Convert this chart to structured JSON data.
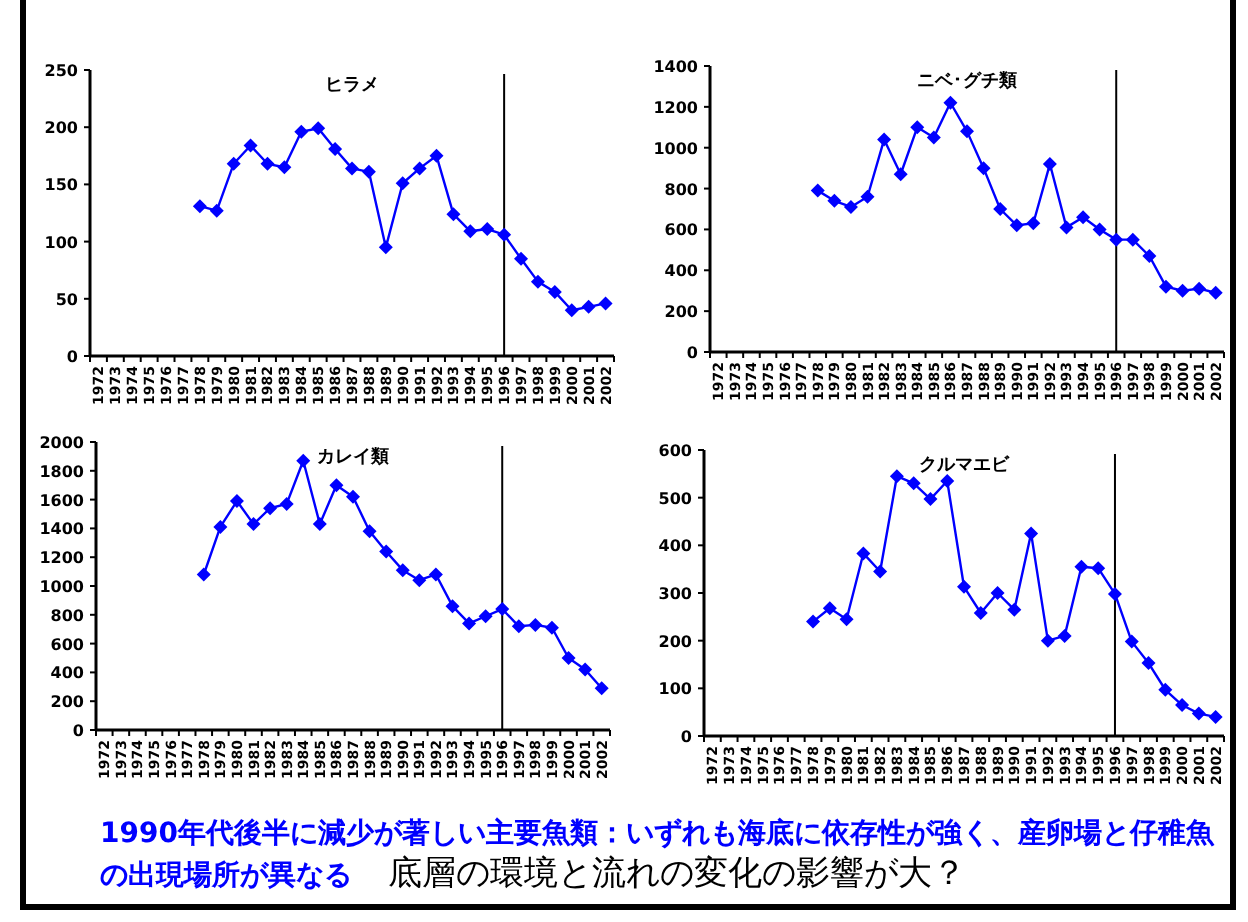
{
  "chart_data": [
    {
      "type": "line",
      "title": "ヒラメ",
      "categories": [
        "1972",
        "1973",
        "1974",
        "1975",
        "1976",
        "1977",
        "1978",
        "1979",
        "1980",
        "1981",
        "1982",
        "1983",
        "1984",
        "1985",
        "1986",
        "1987",
        "1988",
        "1989",
        "1990",
        "1991",
        "1992",
        "1993",
        "1994",
        "1995",
        "1996",
        "1997",
        "1998",
        "1999",
        "2000",
        "2001",
        "2002"
      ],
      "series": [
        {
          "color": "#0000ff",
          "values": [
            null,
            null,
            null,
            null,
            null,
            null,
            131,
            127,
            168,
            184,
            168,
            165,
            196,
            199,
            181,
            164,
            161,
            95,
            151,
            164,
            175,
            124,
            109,
            111,
            106,
            85,
            65,
            56,
            40,
            43,
            46
          ]
        }
      ],
      "ylim": [
        0,
        250
      ],
      "yticks": [
        0,
        50,
        100,
        150,
        200,
        250
      ],
      "marker": "diamond",
      "ref_lines": [
        {
          "axis": "x",
          "value": "1996"
        }
      ]
    },
    {
      "type": "line",
      "title": "ニベ･グチ類",
      "categories": [
        "1972",
        "1973",
        "1974",
        "1975",
        "1976",
        "1977",
        "1978",
        "1979",
        "1980",
        "1981",
        "1982",
        "1983",
        "1984",
        "1985",
        "1986",
        "1987",
        "1988",
        "1989",
        "1990",
        "1991",
        "1992",
        "1993",
        "1994",
        "1995",
        "1996",
        "1997",
        "1998",
        "1999",
        "2000",
        "2001",
        "2002"
      ],
      "series": [
        {
          "color": "#0000ff",
          "values": [
            null,
            null,
            null,
            null,
            null,
            null,
            790,
            740,
            710,
            760,
            1040,
            870,
            1100,
            1050,
            1220,
            1080,
            900,
            700,
            620,
            630,
            920,
            610,
            660,
            600,
            550,
            550,
            470,
            320,
            300,
            310,
            290
          ]
        }
      ],
      "ylim": [
        0,
        1400
      ],
      "yticks": [
        0,
        200,
        400,
        600,
        800,
        1000,
        1200,
        1400
      ],
      "marker": "diamond",
      "ref_lines": [
        {
          "axis": "x",
          "value": "1996"
        }
      ]
    },
    {
      "type": "line",
      "title": "カレイ類",
      "categories": [
        "1972",
        "1973",
        "1974",
        "1975",
        "1976",
        "1977",
        "1978",
        "1979",
        "1980",
        "1981",
        "1982",
        "1983",
        "1984",
        "1985",
        "1986",
        "1987",
        "1988",
        "1989",
        "1990",
        "1991",
        "1992",
        "1993",
        "1994",
        "1995",
        "1996",
        "1997",
        "1998",
        "1999",
        "2000",
        "2001",
        "2002"
      ],
      "series": [
        {
          "color": "#0000ff",
          "values": [
            null,
            null,
            null,
            null,
            null,
            null,
            1080,
            1410,
            1590,
            1430,
            1540,
            1570,
            1870,
            1430,
            1700,
            1620,
            1380,
            1240,
            1110,
            1040,
            1080,
            860,
            740,
            790,
            840,
            720,
            730,
            710,
            500,
            420,
            290
          ]
        }
      ],
      "ylim": [
        0,
        2000
      ],
      "yticks": [
        0,
        200,
        400,
        600,
        800,
        1000,
        1200,
        1400,
        1600,
        1800,
        2000
      ],
      "marker": "diamond",
      "ref_lines": [
        {
          "axis": "x",
          "value": "1996"
        }
      ]
    },
    {
      "type": "line",
      "title": "クルマエビ",
      "categories": [
        "1972",
        "1973",
        "1974",
        "1975",
        "1976",
        "1977",
        "1978",
        "1979",
        "1980",
        "1981",
        "1982",
        "1983",
        "1984",
        "1985",
        "1986",
        "1987",
        "1988",
        "1989",
        "1990",
        "1991",
        "1992",
        "1993",
        "1994",
        "1995",
        "1996",
        "1997",
        "1998",
        "1999",
        "2000",
        "2001",
        "2002"
      ],
      "series": [
        {
          "color": "#0000ff",
          "values": [
            null,
            null,
            null,
            null,
            null,
            null,
            240,
            268,
            245,
            383,
            345,
            545,
            530,
            497,
            535,
            313,
            258,
            300,
            265,
            425,
            200,
            210,
            355,
            352,
            298,
            198,
            153,
            97,
            65,
            47,
            40
          ]
        }
      ],
      "ylim": [
        0,
        600
      ],
      "yticks": [
        0,
        100,
        200,
        300,
        400,
        500,
        600
      ],
      "marker": "diamond",
      "ref_lines": [
        {
          "axis": "x",
          "value": "1996"
        }
      ],
      "annotations": [
        "1990年代後半に減少が著しい主要魚類：いずれも海底に依存性が強く、産卵場と仔稚魚の出現場所が異なる",
        "底層の環境と流れの変化の影響が大？"
      ]
    }
  ]
}
